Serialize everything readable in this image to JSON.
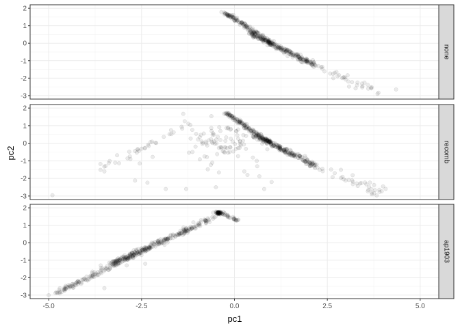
{
  "chart_data": {
    "type": "scatter",
    "xlabel": "pc1",
    "ylabel": "pc2",
    "xlim": [
      -5.5,
      5.5
    ],
    "ylim": [
      -3.2,
      2.2
    ],
    "x_ticks": [
      -5.0,
      -2.5,
      0.0,
      2.5,
      5.0
    ],
    "x_tick_labels": [
      "-5.0",
      "-2.5",
      "0.0",
      "2.5",
      "5.0"
    ],
    "y_ticks": [
      -3,
      -2,
      -1,
      0,
      1,
      2
    ],
    "y_tick_labels": [
      "-3",
      "-2",
      "-1",
      "0",
      "1",
      "2"
    ],
    "grid": true,
    "point_color": "#000000",
    "point_opacity": 0.08,
    "panels": [
      {
        "label": "none",
        "segments": [
          {
            "from": [
              -0.25,
              1.75
            ],
            "to": [
              1.0,
              0.0
            ],
            "n": 140,
            "spread": 0.05
          },
          {
            "from": [
              0.4,
              0.6
            ],
            "to": [
              2.2,
              -1.3
            ],
            "n": 240,
            "spread": 0.07
          },
          {
            "from": [
              2.2,
              -1.3
            ],
            "to": [
              4.0,
              -2.9
            ],
            "n": 30,
            "spread": 0.12
          }
        ],
        "points": [
          [
            4.35,
            -2.65
          ],
          [
            3.6,
            -2.6
          ],
          [
            3.3,
            -2.4
          ],
          [
            3.85,
            -2.9
          ],
          [
            2.9,
            -2.0
          ],
          [
            -0.35,
            1.78
          ]
        ]
      },
      {
        "label": "recomb",
        "segments": [
          {
            "from": [
              -0.25,
              1.75
            ],
            "to": [
              1.0,
              0.0
            ],
            "n": 130,
            "spread": 0.05
          },
          {
            "from": [
              0.4,
              0.6
            ],
            "to": [
              2.2,
              -1.3
            ],
            "n": 230,
            "spread": 0.07
          },
          {
            "from": [
              2.2,
              -1.3
            ],
            "to": [
              4.0,
              -2.8
            ],
            "n": 35,
            "spread": 0.14
          },
          {
            "from": [
              -3.6,
              -1.4
            ],
            "to": [
              -1.2,
              1.0
            ],
            "n": 35,
            "spread": 0.12
          }
        ],
        "clusters": [
          {
            "center": [
              -0.3,
              0.1
            ],
            "sx": 0.45,
            "sy": 0.55,
            "n": 90
          },
          {
            "center": [
              -1.0,
              -1.6
            ],
            "sx": 0.9,
            "sy": 0.6,
            "n": 12
          }
        ],
        "points": [
          [
            -4.9,
            -2.95
          ],
          [
            -3.5,
            -1.6
          ],
          [
            -2.8,
            -0.9
          ],
          [
            -2.6,
            -0.35
          ],
          [
            -2.55,
            -1.15
          ],
          [
            -1.3,
            -2.6
          ],
          [
            -0.5,
            -2.5
          ],
          [
            0.8,
            -2.6
          ],
          [
            1.0,
            -2.2
          ],
          [
            2.7,
            -1.7
          ],
          [
            4.0,
            -2.45
          ],
          [
            3.7,
            -2.9
          ],
          [
            0.6,
            -1.0
          ],
          [
            0.35,
            -1.8
          ]
        ]
      },
      {
        "label": "ap1903",
        "segments": [
          {
            "from": [
              -4.8,
              -2.9
            ],
            "to": [
              -2.4,
              -0.4
            ],
            "n": 150,
            "spread": 0.07
          },
          {
            "from": [
              -3.3,
              -1.2
            ],
            "to": [
              -1.2,
              0.8
            ],
            "n": 230,
            "spread": 0.07
          },
          {
            "from": [
              -1.2,
              0.8
            ],
            "to": [
              -0.45,
              1.55
            ],
            "n": 40,
            "spread": 0.06
          },
          {
            "from": [
              -0.3,
              1.65
            ],
            "to": [
              0.1,
              1.3
            ],
            "n": 25,
            "spread": 0.04
          }
        ],
        "clusters": [
          {
            "center": [
              -0.42,
              1.72
            ],
            "sx": 0.05,
            "sy": 0.04,
            "n": 60
          }
        ],
        "points": [
          [
            -5.0,
            -3.0
          ],
          [
            -4.7,
            -2.6
          ],
          [
            -3.6,
            -1.3
          ],
          [
            -3.5,
            -2.6
          ],
          [
            -2.9,
            -1.3
          ],
          [
            -2.4,
            -1.2
          ],
          [
            -0.9,
            1.3
          ],
          [
            0.05,
            1.3
          ]
        ]
      }
    ]
  }
}
